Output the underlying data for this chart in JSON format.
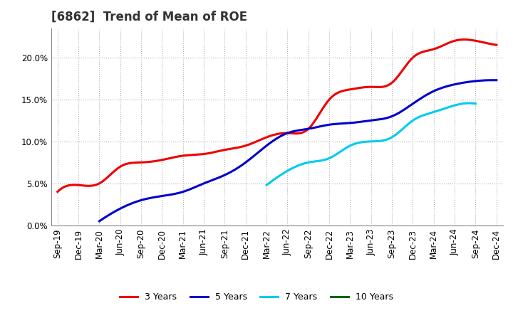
{
  "title": "[6862]  Trend of Mean of ROE",
  "background_color": "#ffffff",
  "plot_background": "#ffffff",
  "grid_color": "#b0b0b0",
  "x_labels": [
    "Sep-19",
    "Dec-19",
    "Mar-20",
    "Jun-20",
    "Sep-20",
    "Dec-20",
    "Mar-21",
    "Jun-21",
    "Sep-21",
    "Dec-21",
    "Mar-22",
    "Jun-22",
    "Sep-22",
    "Dec-22",
    "Mar-23",
    "Jun-23",
    "Sep-23",
    "Dec-23",
    "Mar-24",
    "Jun-24",
    "Sep-24",
    "Dec-24"
  ],
  "series": [
    {
      "name": "3 Years",
      "color": "#ee0000",
      "data_x": [
        0,
        1,
        2,
        3,
        4,
        5,
        6,
        7,
        8,
        9,
        10,
        11,
        12,
        13,
        14,
        15,
        16,
        17,
        18,
        19,
        20,
        21
      ],
      "data_y": [
        4.0,
        4.8,
        5.0,
        7.0,
        7.5,
        7.8,
        8.3,
        8.5,
        9.0,
        9.5,
        10.5,
        11.0,
        11.5,
        15.0,
        16.2,
        16.5,
        17.0,
        20.0,
        21.0,
        22.0,
        22.0,
        21.5
      ]
    },
    {
      "name": "5 Years",
      "color": "#0000cc",
      "data_x": [
        2,
        3,
        4,
        5,
        6,
        7,
        8,
        9,
        10,
        11,
        12,
        13,
        14,
        15,
        16,
        17,
        18,
        19,
        20,
        21
      ],
      "data_y": [
        0.5,
        2.0,
        3.0,
        3.5,
        4.0,
        5.0,
        6.0,
        7.5,
        9.5,
        11.0,
        11.5,
        12.0,
        12.2,
        12.5,
        13.0,
        14.5,
        16.0,
        16.8,
        17.2,
        17.3
      ]
    },
    {
      "name": "7 Years",
      "color": "#00ccee",
      "data_x": [
        10,
        11,
        12,
        13,
        14,
        15,
        16,
        17,
        18,
        19,
        20
      ],
      "data_y": [
        4.8,
        6.5,
        7.5,
        8.0,
        9.5,
        10.0,
        10.5,
        12.5,
        13.5,
        14.3,
        14.5
      ]
    },
    {
      "name": "10 Years",
      "color": "#006600",
      "data_x": [],
      "data_y": []
    }
  ],
  "ylim": [
    0.0,
    0.235
  ],
  "yticks": [
    0.0,
    0.05,
    0.1,
    0.15,
    0.2
  ],
  "title_fontsize": 12,
  "tick_fontsize": 8.5,
  "legend_fontsize": 9,
  "line_width": 2.2
}
